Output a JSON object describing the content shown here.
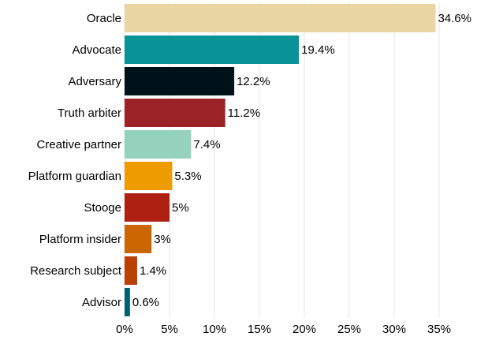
{
  "chart_data": {
    "type": "bar",
    "orientation": "horizontal",
    "categories": [
      "Oracle",
      "Advocate",
      "Adversary",
      "Truth arbiter",
      "Creative partner",
      "Platform guardian",
      "Stooge",
      "Platform insider",
      "Research subject",
      "Advisor"
    ],
    "values": [
      34.6,
      19.4,
      12.2,
      11.2,
      7.4,
      5.3,
      5,
      3,
      1.4,
      0.6
    ],
    "value_labels": [
      "34.6%",
      "19.4%",
      "12.2%",
      "11.2%",
      "7.4%",
      "5.3%",
      "5%",
      "3%",
      "1.4%",
      "0.6%"
    ],
    "colors": [
      "#e9d6a4",
      "#0a9396",
      "#001219",
      "#9b2226",
      "#94d2bd",
      "#ee9b00",
      "#ae2012",
      "#ca6702",
      "#bb3e03",
      "#005f73"
    ],
    "xlim": [
      0,
      35
    ],
    "xticks": [
      {
        "value": 0,
        "label": "0%"
      },
      {
        "value": 5,
        "label": "5%"
      },
      {
        "value": 10,
        "label": "10%"
      },
      {
        "value": 15,
        "label": "15%"
      },
      {
        "value": 20,
        "label": "20%"
      },
      {
        "value": 25,
        "label": "25%"
      },
      {
        "value": 30,
        "label": "30%"
      },
      {
        "value": 35,
        "label": "35%"
      }
    ],
    "grid": true
  }
}
